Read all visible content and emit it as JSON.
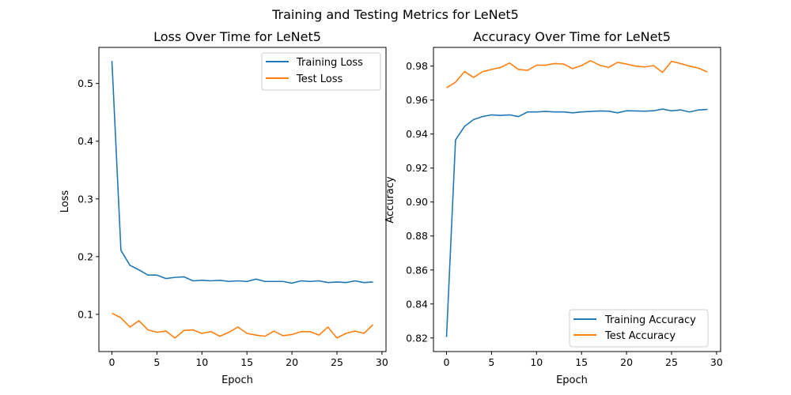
{
  "figure": {
    "title": "Training and Testing Metrics for LeNet5"
  },
  "chart_data": [
    {
      "type": "line",
      "title": "Loss Over Time for LeNet5",
      "xlabel": "Epoch",
      "ylabel": "Loss",
      "xlim": [
        -1.45,
        30.45
      ],
      "ylim": [
        0.0355,
        0.5625
      ],
      "x_ticks": [
        0,
        5,
        10,
        15,
        20,
        25,
        30
      ],
      "y_ticks": [
        0.1,
        0.2,
        0.3,
        0.4,
        0.5
      ],
      "x_tick_labels": [
        "0",
        "5",
        "10",
        "15",
        "20",
        "25",
        "30"
      ],
      "y_tick_labels": [
        "0.1",
        "0.2",
        "0.3",
        "0.4",
        "0.5"
      ],
      "grid": false,
      "legend": "upper-right",
      "x": [
        0,
        1,
        2,
        3,
        4,
        5,
        6,
        7,
        8,
        9,
        10,
        11,
        12,
        13,
        14,
        15,
        16,
        17,
        18,
        19,
        20,
        21,
        22,
        23,
        24,
        25,
        26,
        27,
        28,
        29
      ],
      "series": [
        {
          "name": "Training Loss",
          "color": "#1f77b4",
          "values": [
            0.539,
            0.211,
            0.185,
            0.177,
            0.168,
            0.168,
            0.162,
            0.164,
            0.165,
            0.158,
            0.159,
            0.158,
            0.159,
            0.157,
            0.158,
            0.157,
            0.161,
            0.157,
            0.157,
            0.157,
            0.154,
            0.158,
            0.157,
            0.158,
            0.155,
            0.156,
            0.155,
            0.158,
            0.155,
            0.156
          ]
        },
        {
          "name": "Test Loss",
          "color": "#ff7f0e",
          "values": [
            0.102,
            0.094,
            0.078,
            0.089,
            0.073,
            0.069,
            0.071,
            0.059,
            0.072,
            0.073,
            0.067,
            0.07,
            0.062,
            0.069,
            0.078,
            0.067,
            0.064,
            0.062,
            0.071,
            0.063,
            0.065,
            0.07,
            0.07,
            0.064,
            0.078,
            0.059,
            0.067,
            0.071,
            0.067,
            0.082
          ]
        }
      ]
    },
    {
      "type": "line",
      "title": "Accuracy Over Time for LeNet5",
      "xlabel": "Epoch",
      "ylabel": "Accuracy",
      "xlim": [
        -1.45,
        30.45
      ],
      "ylim": [
        0.812,
        0.991
      ],
      "x_ticks": [
        0,
        5,
        10,
        15,
        20,
        25,
        30
      ],
      "y_ticks": [
        0.82,
        0.84,
        0.86,
        0.88,
        0.9,
        0.92,
        0.94,
        0.96,
        0.98
      ],
      "x_tick_labels": [
        "0",
        "5",
        "10",
        "15",
        "20",
        "25",
        "30"
      ],
      "y_tick_labels": [
        "0.82",
        "0.84",
        "0.86",
        "0.88",
        "0.90",
        "0.92",
        "0.94",
        "0.96",
        "0.98"
      ],
      "grid": false,
      "legend": "lower-right",
      "x": [
        0,
        1,
        2,
        3,
        4,
        5,
        6,
        7,
        8,
        9,
        10,
        11,
        12,
        13,
        14,
        15,
        16,
        17,
        18,
        19,
        20,
        21,
        22,
        23,
        24,
        25,
        26,
        27,
        28,
        29
      ],
      "series": [
        {
          "name": "Training Accuracy",
          "color": "#1f77b4",
          "values": [
            0.8205,
            0.9365,
            0.9445,
            0.9485,
            0.9503,
            0.9513,
            0.951,
            0.9513,
            0.9503,
            0.953,
            0.953,
            0.9533,
            0.953,
            0.953,
            0.9525,
            0.953,
            0.9533,
            0.9536,
            0.9535,
            0.9525,
            0.9537,
            0.9536,
            0.9535,
            0.9537,
            0.9547,
            0.9537,
            0.9542,
            0.953,
            0.9542,
            0.9545
          ]
        },
        {
          "name": "Test Accuracy",
          "color": "#ff7f0e",
          "values": [
            0.9672,
            0.9705,
            0.9768,
            0.9733,
            0.9767,
            0.978,
            0.9792,
            0.9818,
            0.978,
            0.9775,
            0.9805,
            0.9805,
            0.9815,
            0.9812,
            0.9785,
            0.9803,
            0.9832,
            0.9805,
            0.9792,
            0.9822,
            0.9812,
            0.98,
            0.9795,
            0.9803,
            0.9763,
            0.9828,
            0.9815,
            0.98,
            0.9788,
            0.9765
          ]
        }
      ]
    }
  ]
}
